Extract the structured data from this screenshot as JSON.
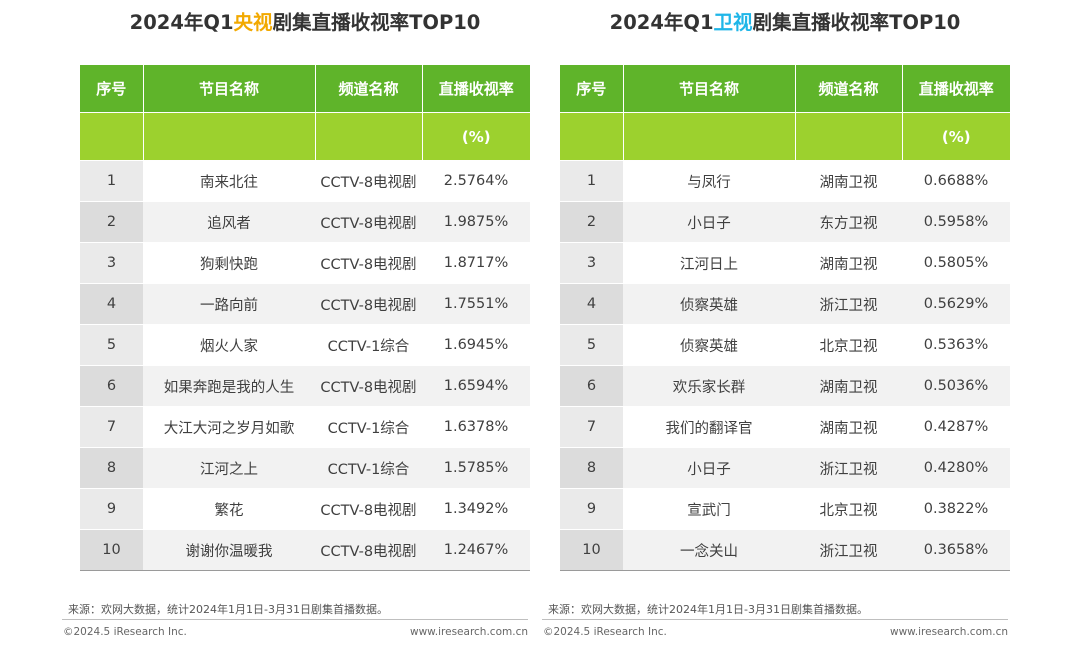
{
  "colors": {
    "header_dark_green": "#5fb42a",
    "header_light_green": "#9cd12e",
    "cctv_highlight": "#f2a900",
    "satellite_highlight": "#1fb6e8"
  },
  "left": {
    "title_prefix": "2024年Q1",
    "title_highlight": "央视",
    "title_suffix": "剧集直播收视率TOP10",
    "headers": [
      "序号",
      "节目名称",
      "频道名称",
      "直播收视率"
    ],
    "unit": "(%)",
    "rows": [
      {
        "no": "1",
        "name": "南来北往",
        "channel": "CCTV-8电视剧",
        "rating": "2.5764%"
      },
      {
        "no": "2",
        "name": "追风者",
        "channel": "CCTV-8电视剧",
        "rating": "1.9875%"
      },
      {
        "no": "3",
        "name": "狗剩快跑",
        "channel": "CCTV-8电视剧",
        "rating": "1.8717%"
      },
      {
        "no": "4",
        "name": "一路向前",
        "channel": "CCTV-8电视剧",
        "rating": "1.7551%"
      },
      {
        "no": "5",
        "name": "烟火人家",
        "channel": "CCTV-1综合",
        "rating": "1.6945%"
      },
      {
        "no": "6",
        "name": "如果奔跑是我的人生",
        "channel": "CCTV-8电视剧",
        "rating": "1.6594%"
      },
      {
        "no": "7",
        "name": "大江大河之岁月如歌",
        "channel": "CCTV-1综合",
        "rating": "1.6378%"
      },
      {
        "no": "8",
        "name": "江河之上",
        "channel": "CCTV-1综合",
        "rating": "1.5785%"
      },
      {
        "no": "9",
        "name": "繁花",
        "channel": "CCTV-8电视剧",
        "rating": "1.3492%"
      },
      {
        "no": "10",
        "name": "谢谢你温暖我",
        "channel": "CCTV-8电视剧",
        "rating": "1.2467%"
      }
    ],
    "source": "来源：欢网大数据，统计2024年1月1日-3月31日剧集首播数据。",
    "copyright": "©2024.5 iResearch Inc.",
    "site": "www.iresearch.com.cn"
  },
  "right": {
    "title_prefix": "2024年Q1",
    "title_highlight": "卫视",
    "title_suffix": "剧集直播收视率TOP10",
    "headers": [
      "序号",
      "节目名称",
      "频道名称",
      "直播收视率"
    ],
    "unit": "(%)",
    "rows": [
      {
        "no": "1",
        "name": "与凤行",
        "channel": "湖南卫视",
        "rating": "0.6688%"
      },
      {
        "no": "2",
        "name": "小日子",
        "channel": "东方卫视",
        "rating": "0.5958%"
      },
      {
        "no": "3",
        "name": "江河日上",
        "channel": "湖南卫视",
        "rating": "0.5805%"
      },
      {
        "no": "4",
        "name": "侦察英雄",
        "channel": "浙江卫视",
        "rating": "0.5629%"
      },
      {
        "no": "5",
        "name": "侦察英雄",
        "channel": "北京卫视",
        "rating": "0.5363%"
      },
      {
        "no": "6",
        "name": "欢乐家长群",
        "channel": "湖南卫视",
        "rating": "0.5036%"
      },
      {
        "no": "7",
        "name": "我们的翻译官",
        "channel": "湖南卫视",
        "rating": "0.4287%"
      },
      {
        "no": "8",
        "name": "小日子",
        "channel": "浙江卫视",
        "rating": "0.4280%"
      },
      {
        "no": "9",
        "name": "宣武门",
        "channel": "北京卫视",
        "rating": "0.3822%"
      },
      {
        "no": "10",
        "name": "一念关山",
        "channel": "浙江卫视",
        "rating": "0.3658%"
      }
    ],
    "source": "来源：欢网大数据，统计2024年1月1日-3月31日剧集首播数据。",
    "copyright": "©2024.5 iResearch Inc.",
    "site": "www.iresearch.com.cn"
  }
}
